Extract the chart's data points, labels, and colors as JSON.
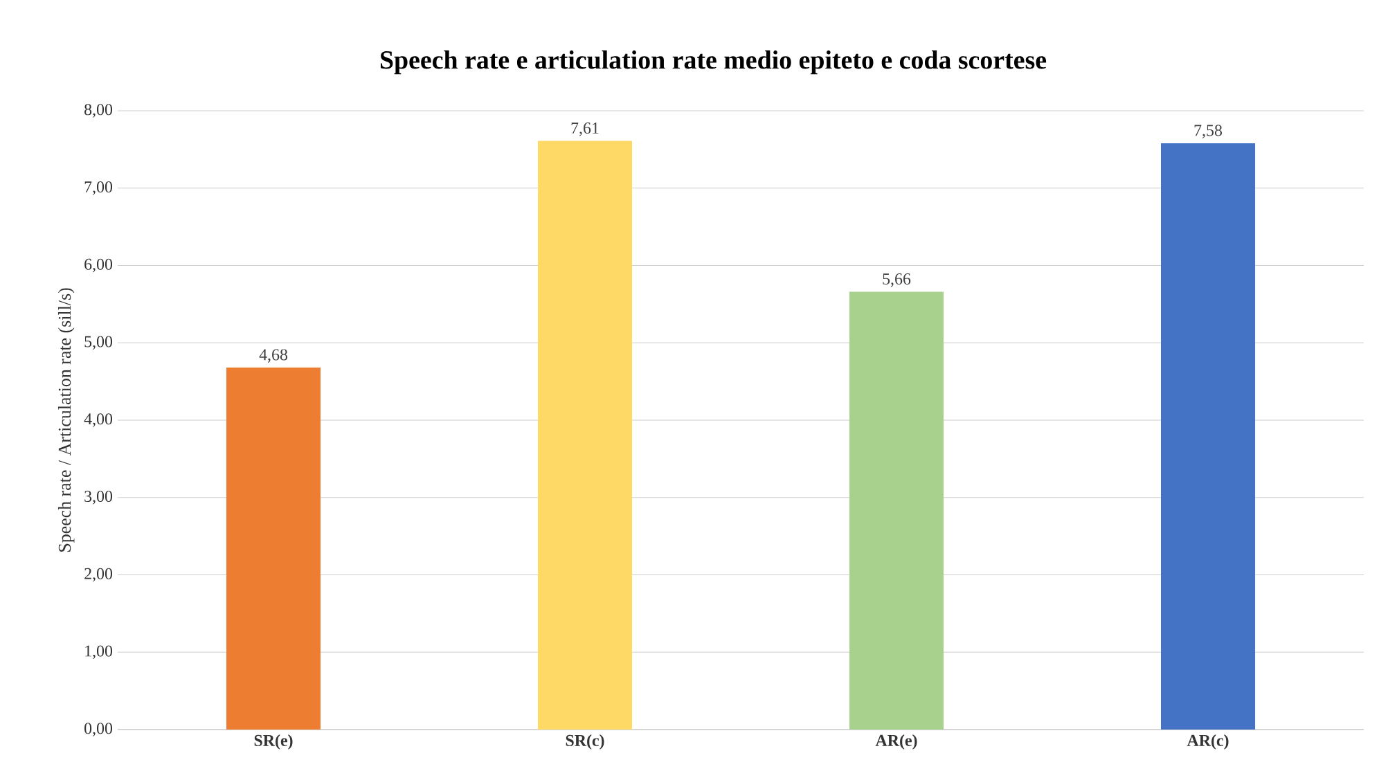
{
  "chart_data": {
    "type": "bar",
    "title": "Speech rate e articulation rate medio epiteto e coda scortese",
    "ylabel": "Speech rate / Articulation rate (sill/s)",
    "categories": [
      "SR(e)",
      "SR(c)",
      "AR(e)",
      "AR(c)"
    ],
    "values": [
      4.68,
      7.61,
      5.66,
      7.58
    ],
    "value_labels": [
      "4,68",
      "7,61",
      "5,66",
      "7,58"
    ],
    "colors": [
      "#ed7d31",
      "#ffd966",
      "#a9d18e",
      "#4472c4"
    ],
    "ylim": [
      0,
      8
    ],
    "yticks": [
      {
        "value": 0,
        "label": "0,00"
      },
      {
        "value": 1,
        "label": "1,00"
      },
      {
        "value": 2,
        "label": "2,00"
      },
      {
        "value": 3,
        "label": "3,00"
      },
      {
        "value": 4,
        "label": "4,00"
      },
      {
        "value": 5,
        "label": "5,00"
      },
      {
        "value": 6,
        "label": "6,00"
      },
      {
        "value": 7,
        "label": "7,00"
      },
      {
        "value": 8,
        "label": "8,00"
      }
    ],
    "grid": "y"
  }
}
